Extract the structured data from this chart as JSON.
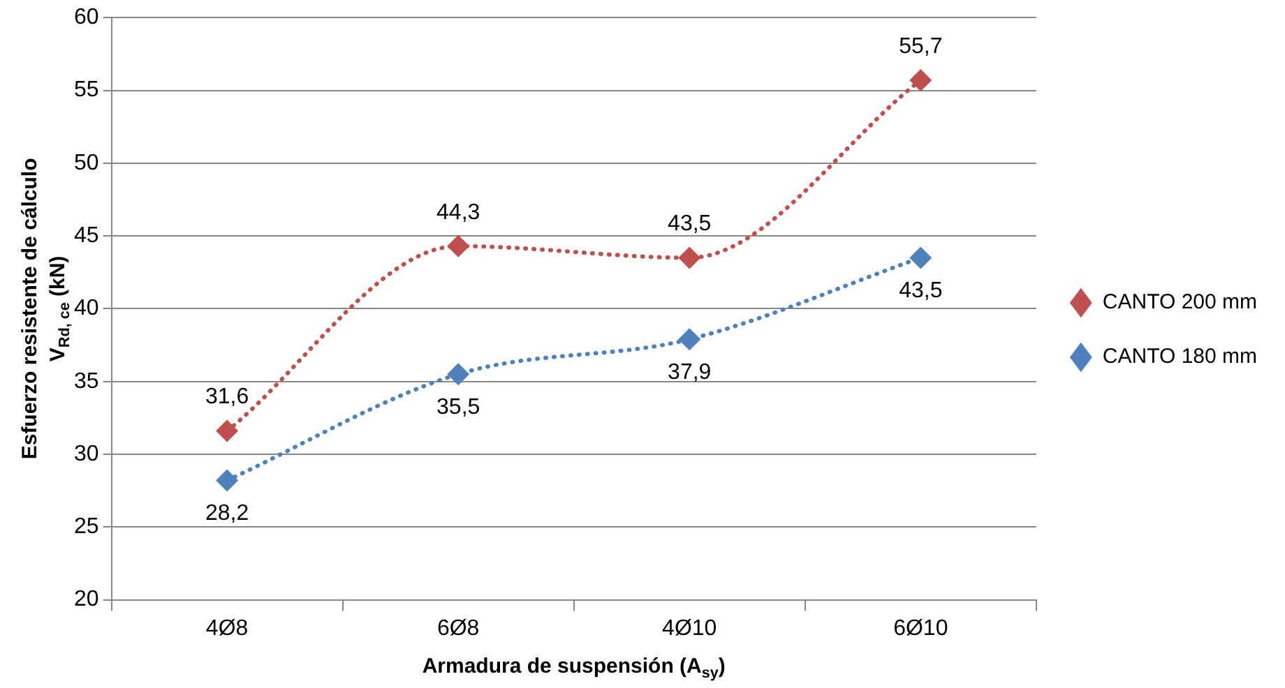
{
  "chart_data": {
    "type": "line",
    "xlabel": "Armadura de suspensión (A$_{sy}$)",
    "ylabel": "Esfuerzo resistente de cálculo\nV$_{Rd, ce}$ (kN)",
    "categories": [
      "4Ø8",
      "6Ø8",
      "4Ø10",
      "6Ø10"
    ],
    "series": [
      {
        "name": "CANTO 200 mm",
        "color": "#c0504d",
        "values": [
          31.6,
          44.3,
          43.5,
          55.7
        ],
        "value_labels": [
          "31,6",
          "44,3",
          "43,5",
          "55,7"
        ]
      },
      {
        "name": "CANTO 180 mm",
        "color": "#4f81bd",
        "values": [
          28.2,
          35.5,
          37.9,
          43.5
        ],
        "value_labels": [
          "28,2",
          "35,5",
          "37,9",
          "43,5"
        ]
      }
    ],
    "ylim": [
      20,
      60
    ],
    "yticks": [
      20,
      25,
      30,
      35,
      40,
      45,
      50,
      55,
      60
    ],
    "grid": "y",
    "legend": "right",
    "marker": "diamond",
    "line_style": "dotted"
  }
}
